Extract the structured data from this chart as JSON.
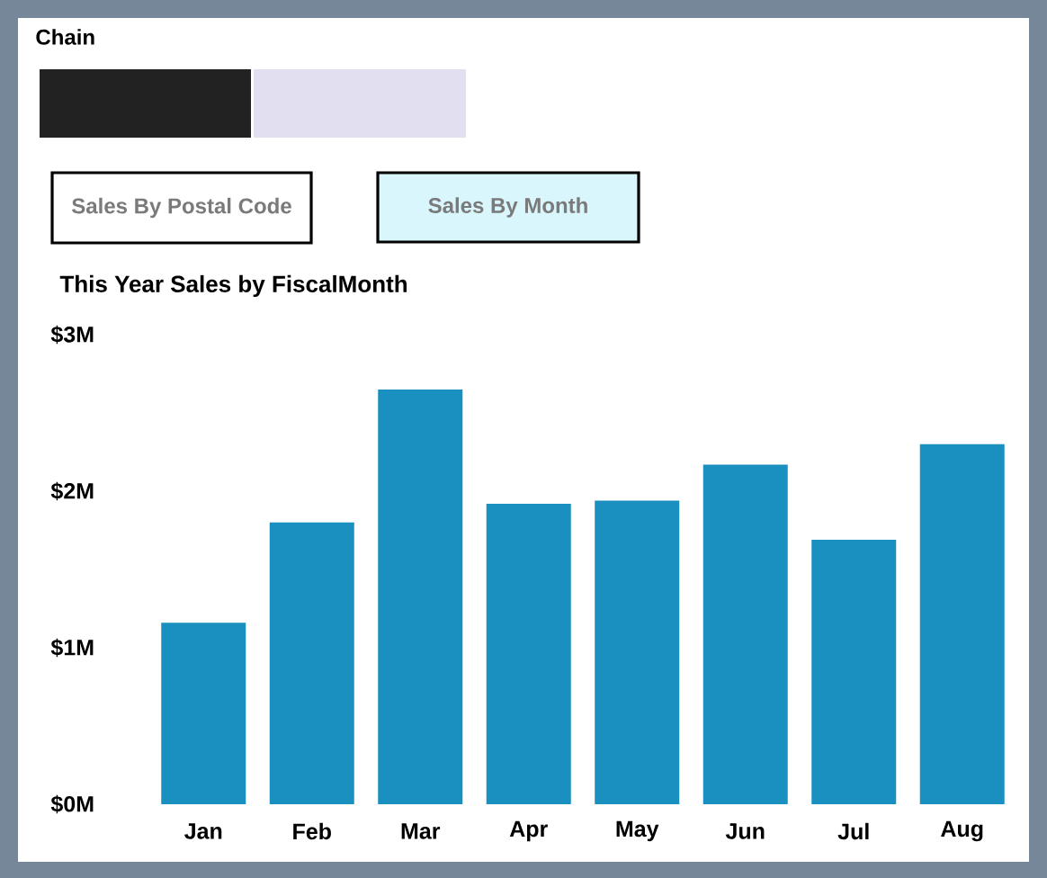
{
  "chart_data": {
    "type": "bar",
    "title": "This Year Sales by FiscalMonth",
    "annotations": [
      "Chain",
      "Sales By Postal Code",
      "Sales By Month"
    ],
    "categories": [
      "Jan",
      "Feb",
      "Mar",
      "Apr",
      "May",
      "Jun",
      "Jul",
      "Aug"
    ],
    "values": [
      1.16,
      1.8,
      2.65,
      1.92,
      1.94,
      2.17,
      1.69,
      2.3
    ],
    "color": "#1a90c0",
    "ylim": [
      0,
      3
    ],
    "yticks": [
      {
        "value": 0,
        "label": "$0M"
      },
      {
        "value": 1,
        "label": "$1M"
      },
      {
        "value": 2,
        "label": "$2M"
      },
      {
        "value": 3,
        "label": "$3M"
      }
    ]
  }
}
